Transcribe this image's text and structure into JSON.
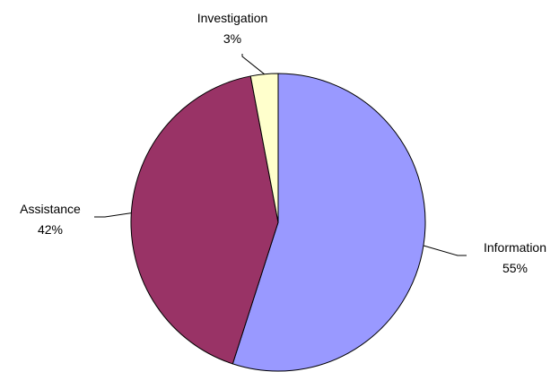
{
  "chart_data": {
    "type": "pie",
    "title": "",
    "slices": [
      {
        "label": "Information",
        "value": 55,
        "value_label": "55%",
        "color": "#9999ff"
      },
      {
        "label": "Assistance",
        "value": 42,
        "value_label": "42%",
        "color": "#993366"
      },
      {
        "label": "Investigation",
        "value": 3,
        "value_label": "3%",
        "color": "#ffffcc"
      }
    ],
    "start_angle_deg": 0,
    "direction": "clockwise",
    "legend": "none",
    "labels": "outside with leader lines"
  }
}
